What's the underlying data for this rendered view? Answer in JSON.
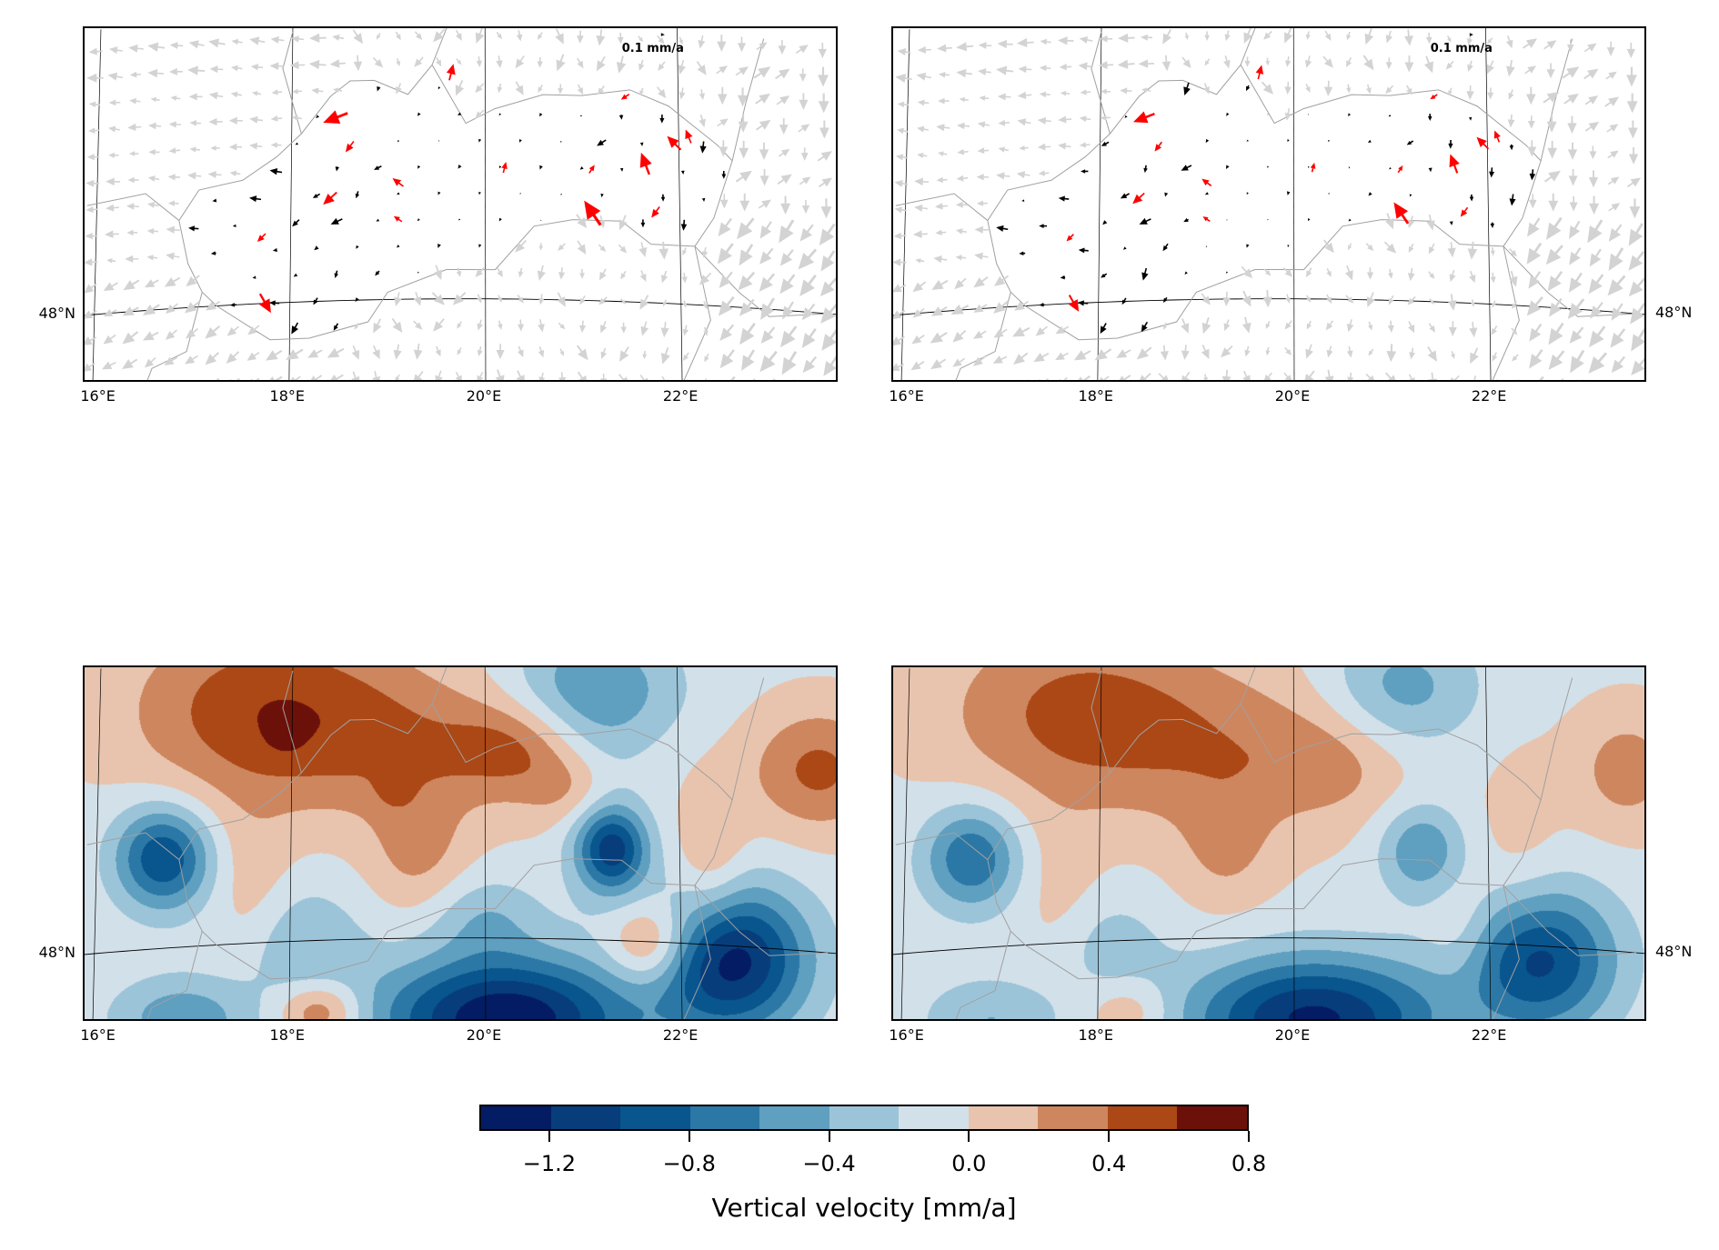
{
  "chart_data": [
    {
      "type": "quiver",
      "panel": "top-left",
      "key_label": "0.1 mm/a",
      "x_ticks": [
        "16°E",
        "18°E",
        "20°E",
        "22°E"
      ],
      "y_ticks": [
        "48°N"
      ],
      "y_tick_side": "left"
    },
    {
      "type": "quiver",
      "panel": "top-right",
      "key_label": "0.1 mm/a",
      "x_ticks": [
        "16°E",
        "18°E",
        "20°E",
        "22°E"
      ],
      "y_ticks": [
        "48°N"
      ],
      "y_tick_side": "right"
    },
    {
      "type": "contourf",
      "panel": "bottom-left",
      "x_ticks": [
        "16°E",
        "18°E",
        "20°E",
        "22°E"
      ],
      "y_ticks": [
        "48°N"
      ],
      "y_tick_side": "left",
      "sources": [
        [
          17.8,
          49.55,
          0.62,
          1.0,
          0.45
        ],
        [
          17.95,
          49.4,
          0.2,
          0.12,
          0.08
        ],
        [
          19.5,
          49.3,
          0.3,
          0.9,
          0.35
        ],
        [
          20.3,
          49.3,
          0.35,
          0.45,
          0.22
        ],
        [
          20.95,
          49.0,
          0.3,
          0.35,
          0.18
        ],
        [
          19.3,
          48.6,
          0.3,
          0.35,
          0.3
        ],
        [
          19.05,
          49.05,
          0.2,
          0.12,
          0.1
        ],
        [
          16.7,
          48.55,
          -0.95,
          0.35,
          0.25
        ],
        [
          21.3,
          48.6,
          -0.85,
          0.25,
          0.2
        ],
        [
          21.2,
          48.8,
          -0.3,
          0.3,
          0.35
        ],
        [
          20.2,
          47.45,
          -1.35,
          0.9,
          0.3
        ],
        [
          22.5,
          47.85,
          -1.25,
          0.55,
          0.35
        ],
        [
          21.7,
          47.95,
          0.6,
          0.3,
          0.2
        ],
        [
          23.4,
          49.15,
          0.5,
          0.5,
          0.3
        ],
        [
          22.3,
          48.5,
          0.3,
          0.25,
          0.4
        ],
        [
          21.1,
          49.7,
          -0.55,
          0.6,
          0.3
        ],
        [
          18.1,
          47.95,
          -0.35,
          0.45,
          0.3
        ],
        [
          16.9,
          47.45,
          -0.5,
          0.5,
          0.2
        ],
        [
          18.3,
          47.5,
          0.55,
          0.3,
          0.15
        ],
        [
          17.6,
          48.3,
          0.2,
          0.3,
          0.4
        ],
        [
          20.0,
          48.15,
          -0.3,
          0.4,
          0.2
        ]
      ]
    },
    {
      "type": "contourf",
      "panel": "bottom-right",
      "x_ticks": [
        "16°E",
        "18°E",
        "20°E",
        "22°E"
      ],
      "y_ticks": [
        "48°N"
      ],
      "y_tick_side": "right",
      "sources": [
        [
          17.8,
          49.55,
          0.5,
          1.0,
          0.45
        ],
        [
          19.5,
          49.25,
          0.3,
          1.0,
          0.4
        ],
        [
          20.4,
          49.2,
          0.2,
          0.5,
          0.25
        ],
        [
          19.3,
          48.6,
          0.25,
          0.35,
          0.3
        ],
        [
          16.7,
          48.55,
          -0.75,
          0.35,
          0.25
        ],
        [
          21.3,
          48.6,
          -0.55,
          0.3,
          0.22
        ],
        [
          20.2,
          47.45,
          -1.2,
          0.9,
          0.3
        ],
        [
          22.5,
          47.85,
          -1.0,
          0.55,
          0.35
        ],
        [
          21.7,
          48.05,
          0.2,
          0.25,
          0.3
        ],
        [
          23.4,
          49.15,
          0.35,
          0.4,
          0.3
        ],
        [
          22.3,
          48.6,
          0.15,
          0.3,
          0.5
        ],
        [
          21.1,
          49.7,
          -0.45,
          0.55,
          0.3
        ],
        [
          18.1,
          47.95,
          -0.25,
          0.4,
          0.25
        ],
        [
          16.9,
          47.45,
          -0.35,
          0.5,
          0.2
        ],
        [
          18.3,
          47.5,
          0.3,
          0.3,
          0.15
        ],
        [
          17.6,
          48.3,
          0.15,
          0.3,
          0.4
        ]
      ]
    }
  ],
  "colorbar": {
    "label": "Vertical velocity [mm/a]",
    "levels": [
      -1.4,
      -1.2,
      -1.0,
      -0.8,
      -0.6,
      -0.4,
      -0.2,
      0.0,
      0.2,
      0.4,
      0.6,
      0.8
    ],
    "tick_labels": [
      "−1.2",
      "−0.8",
      "−0.4",
      "0.0",
      "0.4",
      "0.8"
    ],
    "tick_values": [
      -1.2,
      -0.8,
      -0.4,
      0.0,
      0.4,
      0.8
    ],
    "colors": [
      "#041c63",
      "#073d7b",
      "#09558e",
      "#2b78a6",
      "#5f9fc0",
      "#9cc4d8",
      "#d2e0e9",
      "#e8c4ae",
      "#ce865f",
      "#ab4816",
      "#6c110a"
    ]
  },
  "red_arrows": [
    [
      18.45,
      49.25,
      -0.9,
      0.35
    ],
    [
      18.6,
      49.05,
      -0.3,
      0.4
    ],
    [
      19.65,
      49.55,
      0.15,
      -0.6
    ],
    [
      18.4,
      48.7,
      -0.5,
      0.45
    ],
    [
      17.7,
      48.45,
      -0.3,
      0.3
    ],
    [
      17.75,
      48.0,
      0.4,
      0.7
    ],
    [
      19.1,
      48.8,
      -0.4,
      -0.3
    ],
    [
      19.1,
      48.55,
      -0.3,
      -0.2
    ],
    [
      21.65,
      48.95,
      -0.3,
      -0.8
    ],
    [
      21.95,
      49.1,
      -0.5,
      -0.5
    ],
    [
      22.1,
      49.15,
      -0.2,
      -0.5
    ],
    [
      21.1,
      48.6,
      -0.6,
      -0.9
    ],
    [
      21.75,
      48.62,
      -0.3,
      0.4
    ],
    [
      21.45,
      49.4,
      -0.3,
      0.2
    ],
    [
      20.2,
      48.9,
      0.1,
      -0.4
    ],
    [
      21.1,
      48.9,
      0.2,
      -0.3
    ]
  ],
  "colors": {
    "grey_arrow": "#d3d3d3",
    "black_arrow": "#000000",
    "red_arrow": "#ff0000",
    "border": "#a0a0a0"
  }
}
